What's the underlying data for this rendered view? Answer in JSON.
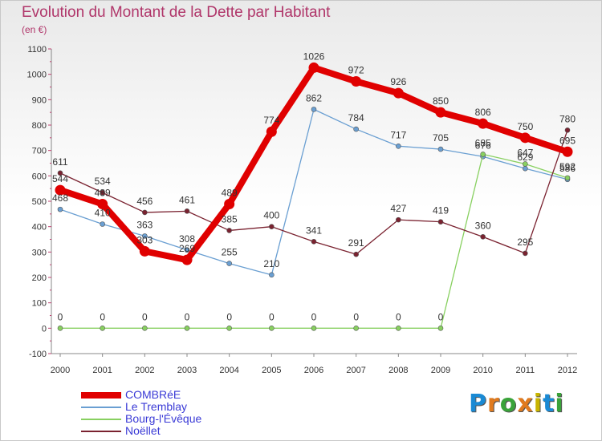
{
  "brand": {
    "letters": [
      "P",
      "r",
      "o",
      "x",
      "i",
      "t",
      "i"
    ],
    "colors": [
      "#1a8ad4",
      "#e07a1e",
      "#3aa33a",
      "#e07a1e",
      "#c8b400",
      "#1a8ad4",
      "#3aa33a"
    ]
  },
  "chart_data": {
    "type": "line",
    "title": "Evolution du Montant de la Dette par Habitant",
    "subtitle": "(en €)",
    "xlabel": "",
    "ylabel": "",
    "x": [
      "2000",
      "2001",
      "2002",
      "2003",
      "2004",
      "2005",
      "2006",
      "2007",
      "2008",
      "2009",
      "2010",
      "2011",
      "2012"
    ],
    "ylim": [
      -100,
      1100
    ],
    "yticks": [
      -100,
      0,
      100,
      200,
      300,
      400,
      500,
      600,
      700,
      800,
      900,
      1000,
      1100
    ],
    "grid": false,
    "legend_position": "bottom-left",
    "series": [
      {
        "name": "COMBRéE",
        "color": "#e00000",
        "thick": true,
        "labels": [
          "544",
          "489",
          "303",
          "269",
          "489",
          "774",
          "1026",
          "972",
          "926",
          "850",
          "806",
          "750",
          "695"
        ],
        "values": [
          544,
          489,
          303,
          269,
          489,
          774,
          1026,
          972,
          926,
          850,
          806,
          750,
          695
        ]
      },
      {
        "name": "Le Tremblay",
        "color": "#6a9fd2",
        "thick": false,
        "labels": [
          "468",
          "410",
          "363",
          "308",
          "255",
          "210",
          "862",
          "784",
          "717",
          "705",
          "676",
          "629",
          "586"
        ],
        "values": [
          468,
          410,
          363,
          308,
          255,
          210,
          862,
          784,
          717,
          705,
          676,
          629,
          586
        ]
      },
      {
        "name": "Bourg-l'Évêque",
        "color": "#88d060",
        "thick": false,
        "labels": [
          "0",
          "0",
          "0",
          "0",
          "0",
          "0",
          "0",
          "0",
          "0",
          "0",
          "685",
          "647",
          "592"
        ],
        "values": [
          0,
          0,
          0,
          0,
          0,
          0,
          0,
          0,
          0,
          0,
          685,
          647,
          592
        ]
      },
      {
        "name": "Noëllet",
        "color": "#7a2230",
        "thick": false,
        "labels": [
          "611",
          "534",
          "456",
          "461",
          "385",
          "400",
          "341",
          "291",
          "427",
          "419",
          "360",
          "295",
          "780"
        ],
        "values": [
          611,
          534,
          456,
          461,
          385,
          400,
          341,
          291,
          427,
          419,
          360,
          295,
          780
        ]
      }
    ]
  }
}
